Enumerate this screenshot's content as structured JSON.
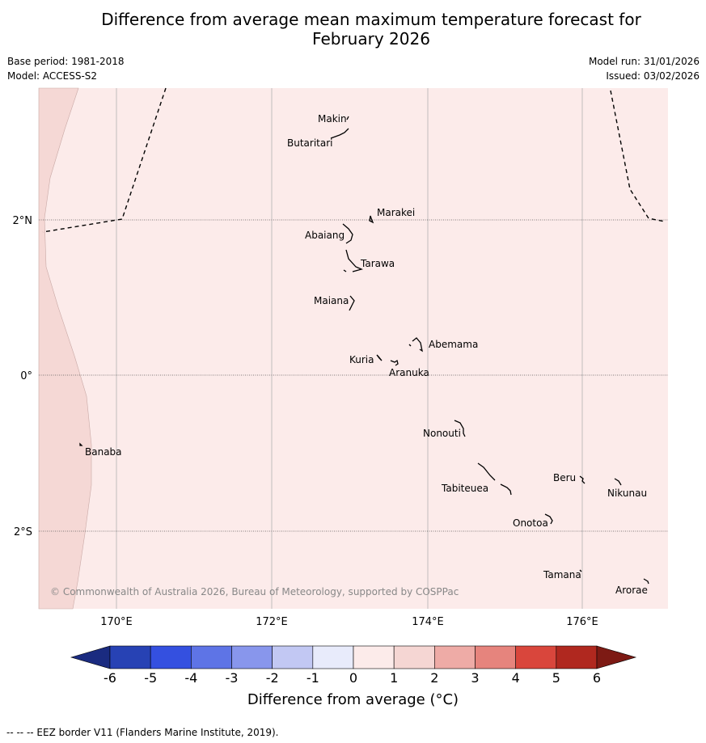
{
  "title_line1": "Difference from average mean maximum temperature forecast for",
  "title_line2": "February 2026",
  "base_period": "Base period: 1981-2018",
  "model": "Model: ACCESS-S2",
  "model_run": "Model run: 31/01/2026",
  "issued": "Issued: 03/02/2026",
  "copyright": "© Commonwealth of Australia 2026, Bureau of Meteorology, supported by COSPPac",
  "lat_labels": [
    "2°N",
    "0°",
    "2°S"
  ],
  "lon_labels": [
    "170°E",
    "172°E",
    "174°E",
    "176°E"
  ],
  "islands": [
    {
      "name": "Makin"
    },
    {
      "name": "Butaritari"
    },
    {
      "name": "Marakei"
    },
    {
      "name": "Abaiang"
    },
    {
      "name": "Tarawa"
    },
    {
      "name": "Maiana"
    },
    {
      "name": "Abemama"
    },
    {
      "name": "Kuria"
    },
    {
      "name": "Aranuka"
    },
    {
      "name": "Banaba"
    },
    {
      "name": "Nonouti"
    },
    {
      "name": "Beru"
    },
    {
      "name": "Tabiteuea"
    },
    {
      "name": "Nikunau"
    },
    {
      "name": "Onotoa"
    },
    {
      "name": "Tamana"
    },
    {
      "name": "Arorae"
    }
  ],
  "colorbar": {
    "ticks": [
      "-6",
      "-5",
      "-4",
      "-3",
      "-2",
      "-1",
      "0",
      "1",
      "2",
      "3",
      "4",
      "5",
      "6"
    ],
    "colors": [
      "#1a2b80",
      "#2742b4",
      "#3450e0",
      "#5e74e6",
      "#8896ec",
      "#c2c8f3",
      "#e8ebfb",
      "#fcebea",
      "#f5d6d3",
      "#eeaba6",
      "#e6847d",
      "#d9463c",
      "#b0281f",
      "#7d1a14"
    ],
    "label": "Difference from average (°C)"
  },
  "footer": "--  --  -- EEZ border V11 (Flanders Marine Institute, 2019)."
}
